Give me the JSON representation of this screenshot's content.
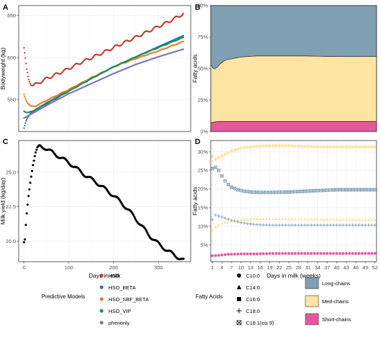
{
  "figure": {
    "panels": [
      "A",
      "B",
      "C",
      "D"
    ]
  },
  "chart_data": [
    {
      "panel": "A",
      "type": "scatter",
      "xlabel": "",
      "ylabel": "Bodyweight (kg)",
      "xlim": [
        -12,
        372
      ],
      "ylim": [
        512,
        662
      ],
      "x_ticks": [
        0,
        100,
        200,
        300
      ],
      "y_ticks": [
        550,
        600,
        650
      ],
      "x_tick_labels_visible": false,
      "grid": true,
      "legend_ref": "predictive_models",
      "series": [
        {
          "name": "HSO",
          "color": "#c0392b",
          "points": [
            [
              0,
              611
            ],
            [
              3,
              598
            ],
            [
              6,
              585
            ],
            [
              10,
              575
            ],
            [
              15,
              569
            ],
            [
              20,
              567
            ],
            [
              30,
              569
            ],
            [
              50,
              575
            ],
            [
              80,
              582
            ],
            [
              100,
              587
            ],
            [
              130,
              595
            ],
            [
              160,
              602
            ],
            [
              200,
              612
            ],
            [
              240,
              622
            ],
            [
              280,
              632
            ],
            [
              320,
              642
            ],
            [
              355,
              652
            ]
          ]
        },
        {
          "name": "HSO_BETA",
          "color": "#1f78b4",
          "points": [
            [
              0,
              516
            ],
            [
              4,
              524
            ],
            [
              8,
              529
            ],
            [
              15,
              534
            ],
            [
              25,
              538
            ],
            [
              50,
              546
            ],
            [
              100,
              561
            ],
            [
              150,
              575
            ],
            [
              200,
              589
            ],
            [
              250,
              601
            ],
            [
              300,
              613
            ],
            [
              355,
              626
            ]
          ]
        },
        {
          "name": "HSO_SBF_BETA",
          "color": "#e67e22",
          "points": [
            [
              0,
              556
            ],
            [
              4,
              550
            ],
            [
              8,
              546
            ],
            [
              15,
              542
            ],
            [
              25,
              542
            ],
            [
              50,
              549
            ],
            [
              100,
              562
            ],
            [
              150,
              576
            ],
            [
              200,
              589
            ],
            [
              250,
              599
            ],
            [
              300,
              608
            ],
            [
              355,
              619
            ]
          ]
        },
        {
          "name": "HSO_VIP",
          "color": "#1a8f5a",
          "points": [
            [
              0,
              536
            ],
            [
              5,
              535
            ],
            [
              10,
              535
            ],
            [
              20,
              536
            ],
            [
              50,
              545
            ],
            [
              100,
              560
            ],
            [
              150,
              575
            ],
            [
              200,
              589
            ],
            [
              250,
              601
            ],
            [
              300,
              612
            ],
            [
              355,
              624
            ]
          ]
        },
        {
          "name": "phenonly",
          "color": "#7e72b8",
          "points": [
            [
              0,
              528
            ],
            [
              50,
              543
            ],
            [
              100,
              557
            ],
            [
              150,
              569
            ],
            [
              200,
              581
            ],
            [
              250,
              592
            ],
            [
              300,
              601
            ],
            [
              355,
              610
            ]
          ]
        }
      ]
    },
    {
      "panel": "B",
      "type": "area",
      "xlabel": "",
      "ylabel": "Fatty acids",
      "xlim": [
        1,
        52
      ],
      "ylim": [
        0,
        100
      ],
      "y_ticks": [
        0,
        25,
        50,
        75,
        100
      ],
      "y_tick_labels": [
        "0%",
        "25%",
        "50%",
        "75%",
        "100%"
      ],
      "x_tick_labels_visible": false,
      "grid": true,
      "legend_ref": "chain_groups",
      "x": [
        1,
        2,
        3,
        4,
        5,
        6,
        8,
        10,
        12,
        15,
        20,
        30,
        40,
        52
      ],
      "series": [
        {
          "name": "Short-chains",
          "color": "#e8579a",
          "values": [
            7,
            7.5,
            8,
            8,
            8,
            8,
            8,
            8,
            8,
            8,
            8,
            8,
            8,
            8
          ]
        },
        {
          "name": "Med-chains",
          "color": "#fde4a3",
          "values": [
            46,
            42,
            43,
            46,
            48,
            49,
            50,
            51,
            51.5,
            52,
            52,
            52,
            51.5,
            51.5
          ]
        },
        {
          "name": "Long-chains",
          "color": "#7f9fb2",
          "values": [
            47,
            50.5,
            49,
            46,
            44,
            43,
            42,
            41,
            40.5,
            40,
            40,
            40,
            40.5,
            40.5
          ]
        }
      ]
    },
    {
      "panel": "C",
      "type": "scatter",
      "xlabel": "Days in milk",
      "ylabel": "Milk yield (kg/day)",
      "xlim": [
        -12,
        372
      ],
      "ylim": [
        18.5,
        27.3
      ],
      "x_ticks": [
        0,
        100,
        200,
        300
      ],
      "y_ticks": [
        20.0,
        22.5,
        25.0
      ],
      "y_tick_labels": [
        "20.0",
        "22.5",
        "25.0"
      ],
      "grid": true,
      "series": [
        {
          "name": "",
          "color": "#000000",
          "points": [
            [
              0,
              19.8
            ],
            [
              2,
              20.0
            ],
            [
              5,
              21.6
            ],
            [
              10,
              23.3
            ],
            [
              15,
              24.6
            ],
            [
              20,
              25.6
            ],
            [
              25,
              26.3
            ],
            [
              30,
              26.7
            ],
            [
              35,
              26.9
            ],
            [
              45,
              26.8
            ],
            [
              60,
              26.5
            ],
            [
              80,
              26.1
            ],
            [
              100,
              25.7
            ],
            [
              120,
              25.2
            ],
            [
              140,
              24.7
            ],
            [
              160,
              24.3
            ],
            [
              180,
              23.8
            ],
            [
              200,
              23.3
            ],
            [
              220,
              22.7
            ],
            [
              240,
              22.0
            ],
            [
              260,
              21.2
            ],
            [
              280,
              20.4
            ],
            [
              300,
              19.8
            ],
            [
              320,
              19.3
            ],
            [
              340,
              18.9
            ],
            [
              355,
              18.6
            ]
          ]
        }
      ]
    },
    {
      "panel": "D",
      "type": "scatter",
      "xlabel": "Days in milk (weeks)",
      "ylabel": "Fatty acids",
      "xlim": [
        0.5,
        52.5
      ],
      "ylim": [
        0.5,
        33
      ],
      "x_ticks": [
        1,
        4,
        7,
        10,
        13,
        16,
        19,
        22,
        25,
        28,
        31,
        34,
        37,
        40,
        43,
        46,
        49,
        52
      ],
      "y_ticks": [
        5,
        10,
        15,
        20,
        25,
        30
      ],
      "y_tick_labels": [
        "5%",
        "10%",
        "15%",
        "20%",
        "25%",
        "30%"
      ],
      "grid": true,
      "legend_ref": "fatty_acids",
      "series": [
        {
          "name": "C10:0",
          "shape": "circle",
          "color": "#e8579a",
          "points": [
            [
              1,
              2.1
            ],
            [
              3,
              2.2
            ],
            [
              6,
              2.5
            ],
            [
              10,
              2.6
            ],
            [
              15,
              2.6
            ],
            [
              20,
              2.7
            ],
            [
              30,
              2.7
            ],
            [
              40,
              2.7
            ],
            [
              52,
              2.7
            ]
          ]
        },
        {
          "name": "C14:0",
          "shape": "triangle",
          "color": "#fde4a3",
          "points": [
            [
              1,
              9.2
            ],
            [
              2,
              9.8
            ],
            [
              4,
              10.8
            ],
            [
              7,
              11.5
            ],
            [
              10,
              11.8
            ],
            [
              13,
              12.0
            ],
            [
              20,
              12.0
            ],
            [
              30,
              11.9
            ],
            [
              40,
              11.8
            ],
            [
              52,
              11.8
            ]
          ]
        },
        {
          "name": "C16:0",
          "shape": "square",
          "color": "#fde4a3",
          "points": [
            [
              1,
              28.8
            ],
            [
              2,
              28.0
            ],
            [
              4,
              28.8
            ],
            [
              7,
              30.2
            ],
            [
              10,
              31.0
            ],
            [
              13,
              31.3
            ],
            [
              16,
              31.5
            ],
            [
              20,
              31.6
            ],
            [
              25,
              31.6
            ],
            [
              30,
              31.4
            ],
            [
              35,
              31.3
            ],
            [
              40,
              31.3
            ],
            [
              46,
              31.3
            ],
            [
              52,
              31.3
            ]
          ]
        },
        {
          "name": "C18:0",
          "shape": "plus",
          "color": "#7f9fb2",
          "points": [
            [
              1,
              11.8
            ],
            [
              2,
              13.0
            ],
            [
              4,
              12.5
            ],
            [
              7,
              11.6
            ],
            [
              10,
              11.0
            ],
            [
              13,
              10.6
            ],
            [
              16,
              10.4
            ],
            [
              20,
              10.3
            ],
            [
              30,
              10.3
            ],
            [
              40,
              10.3
            ],
            [
              52,
              10.3
            ]
          ]
        },
        {
          "name": "C18:1(cis 9)",
          "shape": "boxx",
          "color": "#7f9fb2",
          "points": [
            [
              1,
              25.5
            ],
            [
              2,
              25.8
            ],
            [
              3,
              25.0
            ],
            [
              4,
              23.5
            ],
            [
              5,
              22.2
            ],
            [
              6,
              21.2
            ],
            [
              7,
              20.5
            ],
            [
              9,
              19.8
            ],
            [
              11,
              19.4
            ],
            [
              13,
              19.2
            ],
            [
              16,
              19.1
            ],
            [
              20,
              19.1
            ],
            [
              25,
              19.2
            ],
            [
              30,
              19.4
            ],
            [
              35,
              19.6
            ],
            [
              40,
              19.8
            ],
            [
              46,
              19.8
            ],
            [
              52,
              19.8
            ]
          ]
        }
      ]
    }
  ],
  "legends": {
    "predictive_models": {
      "title": "Predictive Models",
      "entries": [
        {
          "label": "HSO",
          "color": "#c0392b"
        },
        {
          "label": "HSO_BETA",
          "color": "#1f78b4"
        },
        {
          "label": "HSO_SBF_BETA",
          "color": "#e67e22"
        },
        {
          "label": "HSO_VIP",
          "color": "#1a8f5a"
        },
        {
          "label": "phenonly",
          "color": "#7e72b8"
        }
      ]
    },
    "fatty_acids": {
      "title": "Fatty Acids",
      "entries": [
        {
          "label": "C10:0",
          "shape": "circle"
        },
        {
          "label": "C14:0",
          "shape": "triangle"
        },
        {
          "label": "C16:0",
          "shape": "square"
        },
        {
          "label": "C18:0",
          "shape": "plus"
        },
        {
          "label": "C18:1(cis 9)",
          "shape": "boxx"
        }
      ]
    },
    "chain_groups": {
      "title": "",
      "entries": [
        {
          "label": "Long-chains",
          "color": "#7f9fb2"
        },
        {
          "label": "Med-chains",
          "color": "#fde4a3"
        },
        {
          "label": "Short-chains",
          "color": "#e8579a"
        }
      ]
    }
  }
}
